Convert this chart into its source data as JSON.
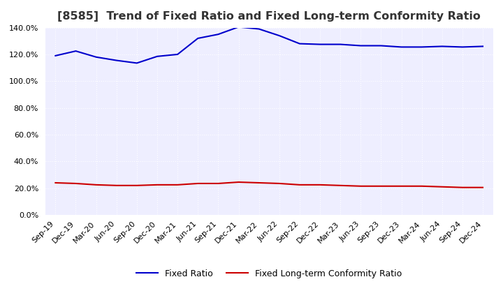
{
  "title": "[8585]  Trend of Fixed Ratio and Fixed Long-term Conformity Ratio",
  "title_fontsize": 11.5,
  "x_labels": [
    "Sep-19",
    "Dec-19",
    "Mar-20",
    "Jun-20",
    "Sep-20",
    "Dec-20",
    "Mar-21",
    "Jun-21",
    "Sep-21",
    "Dec-21",
    "Mar-22",
    "Jun-22",
    "Sep-22",
    "Dec-22",
    "Mar-23",
    "Jun-23",
    "Sep-23",
    "Dec-23",
    "Mar-24",
    "Jun-24",
    "Sep-24",
    "Dec-24"
  ],
  "fixed_ratio": [
    119.0,
    122.5,
    118.0,
    115.5,
    113.5,
    118.5,
    120.0,
    132.0,
    135.0,
    140.5,
    139.0,
    134.0,
    128.0,
    127.5,
    127.5,
    126.5,
    126.5,
    125.5,
    125.5,
    126.0,
    125.5,
    126.0
  ],
  "fixed_lt_ratio": [
    24.0,
    23.5,
    22.5,
    22.0,
    22.0,
    22.5,
    22.5,
    23.5,
    23.5,
    24.5,
    24.0,
    23.5,
    22.5,
    22.5,
    22.0,
    21.5,
    21.5,
    21.5,
    21.5,
    21.0,
    20.5,
    20.5
  ],
  "ylim": [
    0,
    140
  ],
  "yticks": [
    0,
    20,
    40,
    60,
    80,
    100,
    120,
    140
  ],
  "fixed_ratio_color": "#0000CC",
  "fixed_lt_ratio_color": "#CC0000",
  "line_width": 1.5,
  "background_color": "#FFFFFF",
  "plot_bg_color": "#EEEEFF",
  "grid_color": "#FFFFFF",
  "grid_style": "dotted",
  "legend_fixed_ratio": "Fixed Ratio",
  "legend_fixed_lt_ratio": "Fixed Long-term Conformity Ratio"
}
